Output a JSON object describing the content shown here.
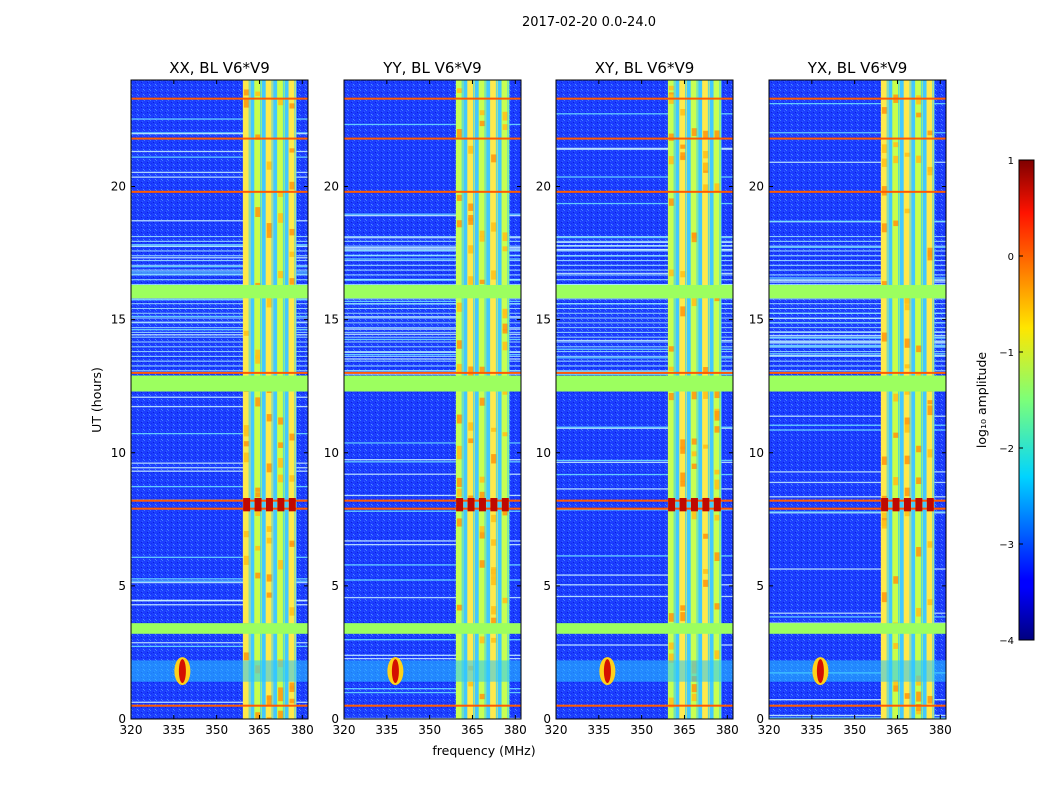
{
  "chart_data": {
    "type": "heatmap",
    "suptitle": "2017-02-20 0.0-24.0",
    "panels": [
      {
        "title": "XX, BL V6*V9"
      },
      {
        "title": "YY, BL V6*V9"
      },
      {
        "title": "XY, BL V6*V9"
      },
      {
        "title": "YX, BL V6*V9"
      }
    ],
    "xlabel": "frequency (MHz)",
    "ylabel": "UT (hours)",
    "xlim": [
      320,
      382
    ],
    "ylim": [
      0,
      24
    ],
    "xticks": [
      320,
      335,
      350,
      365,
      380
    ],
    "yticks": [
      0,
      5,
      10,
      15,
      20
    ],
    "colorbar": {
      "label": "log₁₀ amplitude",
      "range": [
        -4,
        1
      ],
      "ticks": [
        "1",
        "0",
        "−1",
        "−2",
        "−3",
        "−4"
      ],
      "tick_values": [
        1,
        0,
        -1,
        -2,
        -3,
        -4
      ],
      "colormap": "jet"
    },
    "features": {
      "bright_frequency_band_mhz": [
        359.5,
        378
      ],
      "bright_channel_columns_mhz": [
        360.5,
        364.5,
        368.5,
        372.5,
        376.5
      ],
      "flagged_time_bands_hours": [
        [
          12.3,
          12.9
        ],
        [
          15.8,
          16.3
        ],
        [
          3.2,
          3.6
        ]
      ],
      "strong_rfi_rows_hours": [
        0.5,
        7.9,
        8.2,
        13.0,
        19.8,
        21.8,
        23.3
      ],
      "low_frequency_burst": {
        "frequency_mhz": 338,
        "time_hours": [
          1.4,
          2.2
        ]
      }
    }
  },
  "colors": {
    "background_blue": "#1a3cff",
    "flagged_green": "#9cff5f",
    "rfi_red": "#ff2000"
  }
}
